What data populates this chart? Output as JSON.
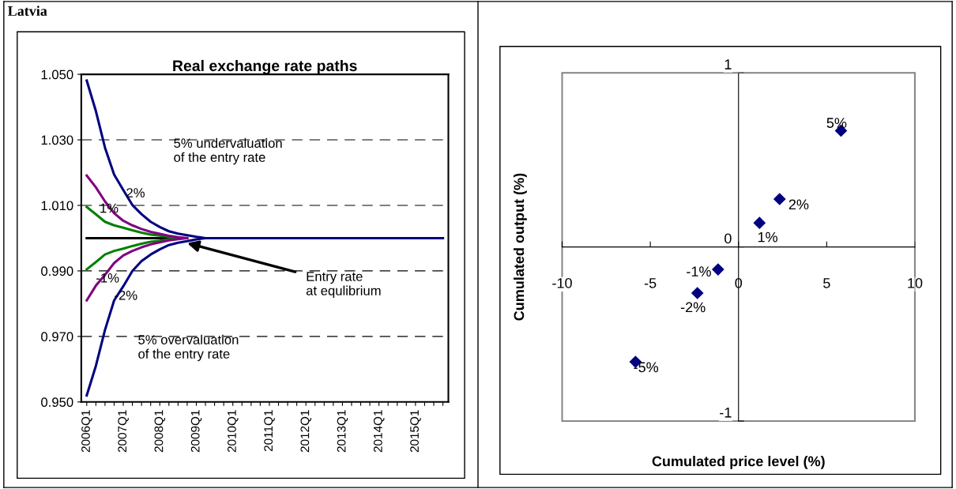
{
  "chart_data": [
    {
      "type": "line",
      "title": "Real exchange rate paths",
      "categories": [
        "2006Q1",
        null,
        null,
        null,
        "2007Q1",
        null,
        null,
        null,
        "2008Q1",
        null,
        null,
        null,
        "2009Q1",
        null,
        null,
        null,
        "2010Q1",
        null,
        null,
        null,
        "2011Q1",
        null,
        null,
        null,
        "2012Q1",
        null,
        null,
        null,
        "2013Q1",
        null,
        null,
        null,
        "2014Q1",
        null,
        null,
        null,
        "2015Q1",
        null,
        null,
        null
      ],
      "series": [
        {
          "color": "#000000",
          "values": [
            1.0,
            1.0,
            1.0,
            1.0,
            1.0,
            1.0,
            1.0,
            1.0,
            1.0,
            1.0,
            1.0,
            null,
            null,
            null,
            null,
            null,
            null,
            null,
            null,
            null,
            null,
            null,
            null,
            null,
            null,
            null,
            null,
            null,
            null,
            null,
            null,
            null,
            null,
            null,
            null,
            null,
            null,
            null,
            null,
            null
          ]
        },
        {
          "color": "#008000",
          "values": [
            1.0095,
            1.0073,
            1.005,
            1.0039,
            1.0032,
            1.0024,
            1.0017,
            1.0011,
            1.0008,
            1.0004,
            1.0,
            null,
            null,
            null,
            null,
            null,
            null,
            null,
            null,
            null,
            null,
            null,
            null,
            null,
            null,
            null,
            null,
            null,
            null,
            null,
            null,
            null,
            null,
            null,
            null,
            null,
            null,
            null,
            null,
            null
          ]
        },
        {
          "color": "#008000",
          "values": [
            0.9905,
            0.9927,
            0.995,
            0.9961,
            0.9968,
            0.9976,
            0.9983,
            0.9989,
            0.9992,
            0.9996,
            1.0,
            null,
            null,
            null,
            null,
            null,
            null,
            null,
            null,
            null,
            null,
            null,
            null,
            null,
            null,
            null,
            null,
            null,
            null,
            null,
            null,
            null,
            null,
            null,
            null,
            null,
            null,
            null,
            null,
            null
          ]
        },
        {
          "color": "#800080",
          "values": [
            1.0191,
            1.0155,
            1.0112,
            1.0076,
            1.0053,
            1.0039,
            1.0028,
            1.0019,
            1.0013,
            1.0007,
            1.0003,
            1.0,
            null,
            null,
            null,
            null,
            null,
            null,
            null,
            null,
            null,
            null,
            null,
            null,
            null,
            null,
            null,
            null,
            null,
            null,
            null,
            null,
            null,
            null,
            null,
            null,
            null,
            null,
            null,
            null
          ]
        },
        {
          "color": "#800080",
          "values": [
            0.981,
            0.9855,
            0.9888,
            0.9924,
            0.9947,
            0.9961,
            0.9972,
            0.9981,
            0.9987,
            0.9993,
            0.9997,
            1.0,
            null,
            null,
            null,
            null,
            null,
            null,
            null,
            null,
            null,
            null,
            null,
            null,
            null,
            null,
            null,
            null,
            null,
            null,
            null,
            null,
            null,
            null,
            null,
            null,
            null,
            null,
            null,
            null
          ]
        },
        {
          "color": "#000080",
          "values": [
            1.0481,
            1.0388,
            1.0276,
            1.0194,
            1.0147,
            1.0101,
            1.0073,
            1.005,
            1.0034,
            1.0021,
            1.0014,
            1.0009,
            1.0004,
            1.0,
            1.0,
            1.0,
            1.0,
            1.0,
            1.0,
            1.0,
            1.0,
            1.0,
            1.0,
            1.0,
            1.0,
            1.0,
            1.0,
            1.0,
            1.0,
            1.0,
            1.0,
            1.0,
            1.0,
            1.0,
            1.0,
            1.0,
            1.0,
            1.0,
            1.0,
            1.0
          ]
        },
        {
          "color": "#000080",
          "values": [
            0.952,
            0.961,
            0.972,
            0.981,
            0.9853,
            0.99,
            0.993,
            0.995,
            0.9966,
            0.9979,
            0.9986,
            0.9991,
            0.9996,
            1.0,
            1.0,
            1.0,
            1.0,
            1.0,
            1.0,
            1.0,
            1.0,
            1.0,
            1.0,
            1.0,
            1.0,
            1.0,
            1.0,
            1.0,
            1.0,
            1.0,
            1.0,
            1.0,
            1.0,
            1.0,
            1.0,
            1.0,
            1.0,
            1.0,
            1.0,
            1.0
          ]
        }
      ],
      "ylim": [
        0.95,
        1.05
      ],
      "yticks": [
        {
          "value": 0.95,
          "label": "0.950"
        },
        {
          "value": 0.97,
          "label": "0.970"
        },
        {
          "value": 0.99,
          "label": "0.990"
        },
        {
          "value": 1.01,
          "label": "1.010"
        },
        {
          "value": 1.03,
          "label": "1.030"
        },
        {
          "value": 1.05,
          "label": "1.050"
        }
      ],
      "grid": "y",
      "legend": false,
      "marker": "none",
      "line_style": "solid",
      "annotations": [
        "Latvia",
        "5% undervaluation\nof the entry rate",
        "5% overvaluation\nof the entry rate",
        "2%",
        "1%",
        "-1%",
        "-2%",
        {
          "text": "Entry rate\nat equlibrium",
          "y": 0.9985
        }
      ]
    },
    {
      "type": "scatter",
      "xlabel": "Cumulated price level (%)",
      "ylabel": "Cumulated output (%)",
      "x": [
        5.81,
        2.33,
        1.19,
        -1.16,
        -2.33,
        -5.84
      ],
      "values": [
        0.668,
        0.275,
        0.138,
        -0.129,
        -0.265,
        -0.66
      ],
      "annotations": [
        {
          "text": "5%",
          "x": 5.81,
          "y": 0.668
        },
        {
          "text": "2%",
          "x": 2.33,
          "y": 0.275
        },
        {
          "text": "1%",
          "x": 1.19,
          "y": 0.138
        },
        {
          "text": "-1%",
          "x": -1.16,
          "y": -0.129
        },
        {
          "text": "-2%",
          "x": -2.33,
          "y": -0.265
        },
        {
          "text": "-5%",
          "x": -5.84,
          "y": -0.66
        }
      ],
      "color": "#000080",
      "marker": "diamond",
      "xlim": [
        -10,
        10
      ],
      "xticks": [
        -10,
        -5,
        0,
        5,
        10
      ],
      "ylim": [
        -1,
        1
      ],
      "yticks": [
        -1,
        0,
        1
      ],
      "grid": false,
      "legend": false
    }
  ]
}
